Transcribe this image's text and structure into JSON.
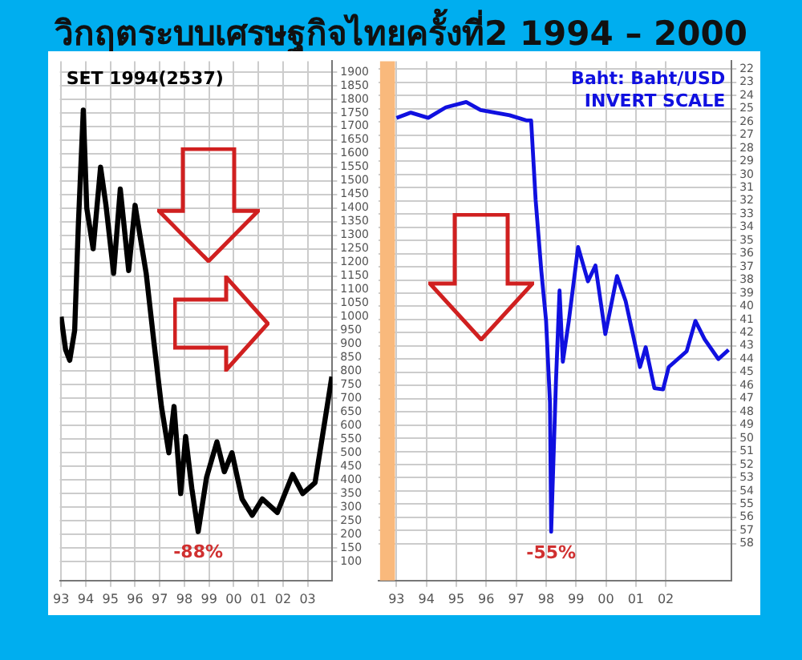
{
  "chart_data": [
    {
      "type": "line",
      "title": "วิกฤตระบบเศรษฐกิจไทยครั้งที่2 1994 – 2000",
      "series": [
        {
          "name": "SET 1994(2537)",
          "color": "#000000",
          "x": [
            1993.0,
            1993.18,
            1993.35,
            1993.55,
            1993.7,
            1993.9,
            1994.04,
            1994.3,
            1994.6,
            1994.82,
            1995.13,
            1995.4,
            1995.74,
            1996.0,
            1996.25,
            1996.45,
            1996.76,
            1997.07,
            1997.37,
            1997.58,
            1997.85,
            1998.05,
            1998.3,
            1998.56,
            1998.9,
            1999.32,
            1999.62,
            1999.93,
            2000.34,
            2000.75,
            2001.16,
            2001.77,
            2002.39,
            2002.8,
            2003.3,
            2003.72,
            2003.98
          ],
          "values": [
            1000,
            880,
            840,
            950,
            1340,
            1760,
            1400,
            1250,
            1550,
            1410,
            1160,
            1470,
            1170,
            1410,
            1270,
            1160,
            910,
            670,
            500,
            670,
            350,
            560,
            370,
            210,
            410,
            540,
            430,
            500,
            330,
            270,
            330,
            280,
            420,
            350,
            390,
            630,
            780
          ]
        }
      ],
      "xlim": [
        1992.95,
        2004.0
      ],
      "xticks": [
        {
          "value": 1993,
          "label": "93"
        },
        {
          "value": 1994,
          "label": "94"
        },
        {
          "value": 1995,
          "label": "95"
        },
        {
          "value": 1996,
          "label": "96"
        },
        {
          "value": 1997,
          "label": "97"
        },
        {
          "value": 1998,
          "label": "98"
        },
        {
          "value": 1999,
          "label": "99"
        },
        {
          "value": 2000,
          "label": "00"
        },
        {
          "value": 2001,
          "label": "01"
        },
        {
          "value": 2002,
          "label": "02"
        },
        {
          "value": 2003,
          "label": "03"
        }
      ],
      "ylim": [
        30,
        1940
      ],
      "yticks": [
        100,
        150,
        200,
        250,
        300,
        350,
        400,
        450,
        500,
        550,
        600,
        650,
        700,
        750,
        800,
        850,
        900,
        950,
        1000,
        1050,
        1100,
        1150,
        1200,
        1250,
        1300,
        1350,
        1400,
        1450,
        1500,
        1550,
        1600,
        1650,
        1700,
        1750,
        1800,
        1850,
        1900
      ],
      "grid": true,
      "legend": false,
      "annotations": [
        {
          "text": "-88%",
          "x": 1998.56,
          "y": 210
        }
      ]
    },
    {
      "type": "line",
      "series": [
        {
          "name": "Baht: Baht/USD",
          "color": "#1010e0",
          "x": [
            1993.0,
            1993.48,
            1994.06,
            1994.65,
            1995.33,
            1995.81,
            1996.78,
            1997.36,
            1997.5,
            1997.65,
            1997.84,
            1998.0,
            1998.13,
            1998.17,
            1998.33,
            1998.45,
            1998.56,
            1998.76,
            1999.07,
            1999.4,
            1999.65,
            1999.98,
            2000.37,
            2000.66,
            2001.14,
            2001.33,
            2001.62,
            2001.91,
            2002.1,
            2002.7,
            2002.99,
            2003.3,
            2003.76,
            2004.1
          ],
          "values": [
            25.7,
            25.3,
            25.7,
            24.9,
            24.5,
            25.1,
            25.5,
            25.9,
            25.9,
            31.9,
            37.3,
            41.1,
            47.3,
            57.1,
            45.7,
            38.8,
            44.2,
            41.1,
            35.5,
            38.1,
            36.9,
            42.1,
            37.7,
            39.6,
            44.6,
            43.1,
            46.2,
            46.3,
            44.6,
            43.4,
            41.1,
            42.5,
            44.0,
            43.3
          ]
        }
      ],
      "xlim": [
        1992.4,
        2004.2
      ],
      "xticks": [
        {
          "value": 1993,
          "label": "93"
        },
        {
          "value": 1994,
          "label": "94"
        },
        {
          "value": 1995,
          "label": "95"
        },
        {
          "value": 1996,
          "label": "96"
        },
        {
          "value": 1997,
          "label": "97"
        },
        {
          "value": 1998,
          "label": "98"
        },
        {
          "value": 1999,
          "label": "99"
        },
        {
          "value": 2000,
          "label": "00"
        },
        {
          "value": 2001,
          "label": "01"
        },
        {
          "value": 2002,
          "label": "02"
        }
      ],
      "ylim": [
        60.8,
        21.4
      ],
      "yticks": [
        22,
        23,
        24,
        25,
        26,
        27,
        28,
        29,
        30,
        31,
        32,
        33,
        34,
        35,
        36,
        37,
        38,
        39,
        40,
        41,
        42,
        43,
        44,
        45,
        46,
        47,
        48,
        49,
        50,
        51,
        52,
        53,
        54,
        55,
        56,
        57,
        58
      ],
      "grid": true,
      "legend": false,
      "bands": [
        {
          "axis": "x",
          "from": 1992.45,
          "to": 1992.95,
          "color": "#f9b97c"
        }
      ],
      "annotations": [
        "INVERT SCALE",
        {
          "text": "-55%",
          "x": 1998.17,
          "y": 57.1
        }
      ]
    }
  ]
}
